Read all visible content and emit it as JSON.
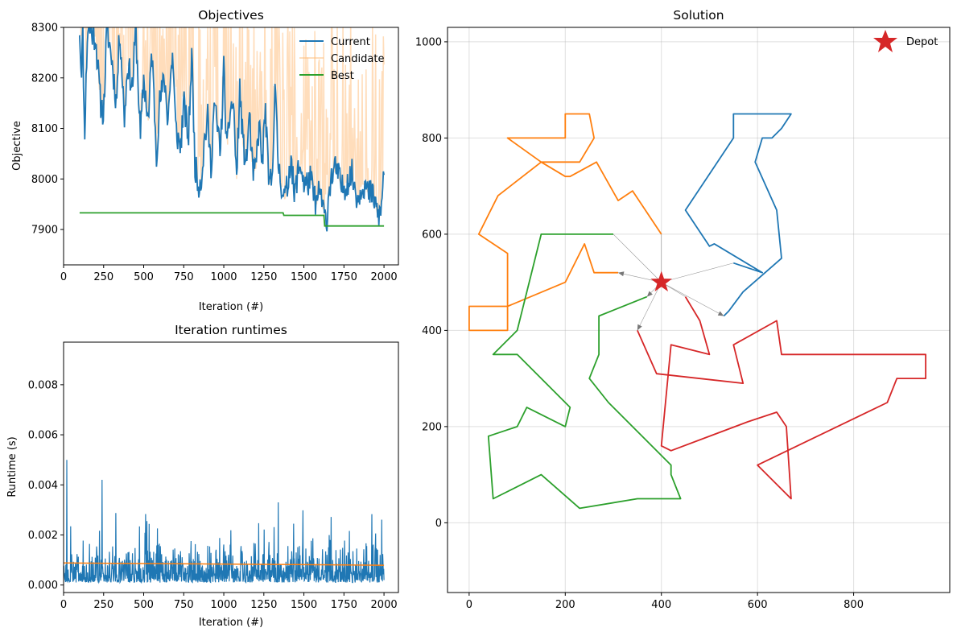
{
  "chart_data": [
    {
      "type": "line",
      "title": "Objectives",
      "xlabel": "Iteration (#)",
      "ylabel": "Objective",
      "xlim": [
        0,
        2090
      ],
      "ylim": [
        7830,
        8300
      ],
      "xticks": [
        0,
        250,
        500,
        750,
        1000,
        1250,
        1500,
        1750,
        2000
      ],
      "yticks": [
        7900,
        8000,
        8100,
        8200,
        8300
      ],
      "grid": false,
      "legend_position": "top-right",
      "series": [
        {
          "name": "Current",
          "color": "#1f77b4",
          "points": [
            [
              100,
              8300
            ],
            [
              110,
              8210
            ],
            [
              120,
              8290
            ],
            [
              130,
              8080
            ],
            [
              150,
              8300
            ],
            [
              200,
              8280
            ],
            [
              230,
              8150
            ],
            [
              250,
              8130
            ],
            [
              270,
              8300
            ],
            [
              300,
              8240
            ],
            [
              330,
              8150
            ],
            [
              350,
              8300
            ],
            [
              380,
              8120
            ],
            [
              400,
              8230
            ],
            [
              430,
              8180
            ],
            [
              450,
              8300
            ],
            [
              480,
              8080
            ],
            [
              500,
              8200
            ],
            [
              530,
              8110
            ],
            [
              550,
              8260
            ],
            [
              580,
              8050
            ],
            [
              600,
              8150
            ],
            [
              630,
              8200
            ],
            [
              650,
              8120
            ],
            [
              680,
              8250
            ],
            [
              700,
              8100
            ],
            [
              730,
              8060
            ],
            [
              750,
              8150
            ],
            [
              780,
              8080
            ],
            [
              800,
              8250
            ],
            [
              820,
              8030
            ],
            [
              840,
              7990
            ],
            [
              860,
              8000
            ],
            [
              880,
              8080
            ],
            [
              900,
              8120
            ],
            [
              920,
              8020
            ],
            [
              940,
              8150
            ],
            [
              960,
              8100
            ],
            [
              980,
              8060
            ],
            [
              1000,
              8220
            ],
            [
              1020,
              8050
            ],
            [
              1040,
              8140
            ],
            [
              1060,
              8150
            ],
            [
              1080,
              8000
            ],
            [
              1100,
              8180
            ],
            [
              1120,
              8070
            ],
            [
              1140,
              8030
            ],
            [
              1160,
              8130
            ],
            [
              1180,
              8010
            ],
            [
              1200,
              8020
            ],
            [
              1220,
              8110
            ],
            [
              1240,
              8030
            ],
            [
              1260,
              8140
            ],
            [
              1280,
              7990
            ],
            [
              1300,
              8000
            ],
            [
              1320,
              8180
            ],
            [
              1340,
              8030
            ],
            [
              1360,
              7990
            ],
            [
              1380,
              7960
            ],
            [
              1400,
              7990
            ],
            [
              1420,
              8050
            ],
            [
              1440,
              7960
            ],
            [
              1460,
              8010
            ],
            [
              1480,
              8030
            ],
            [
              1500,
              7990
            ],
            [
              1520,
              7990
            ],
            [
              1540,
              8000
            ],
            [
              1560,
              7970
            ],
            [
              1580,
              7950
            ],
            [
              1600,
              7980
            ],
            [
              1620,
              7940
            ],
            [
              1640,
              7910
            ],
            [
              1660,
              7990
            ],
            [
              1680,
              8010
            ],
            [
              1700,
              8020
            ],
            [
              1720,
              8000
            ],
            [
              1740,
              7980
            ],
            [
              1760,
              7990
            ],
            [
              1780,
              8000
            ],
            [
              1800,
              8010
            ],
            [
              1820,
              7980
            ],
            [
              1840,
              7960
            ],
            [
              1860,
              7990
            ],
            [
              1880,
              7990
            ],
            [
              1900,
              7970
            ],
            [
              1920,
              7970
            ],
            [
              1940,
              7960
            ],
            [
              1960,
              7930
            ],
            [
              1980,
              7930
            ],
            [
              2000,
              8020
            ]
          ]
        },
        {
          "name": "Candidate",
          "color": "#ffbb78"
        },
        {
          "name": "Best",
          "color": "#2ca02c",
          "points": [
            [
              100,
              7933
            ],
            [
              1370,
              7933
            ],
            [
              1375,
              7928
            ],
            [
              1625,
              7928
            ],
            [
              1630,
              7907
            ],
            [
              2000,
              7907
            ]
          ]
        }
      ]
    },
    {
      "type": "line",
      "title": "Iteration runtimes",
      "xlabel": "Iteration (#)",
      "ylabel": "Runtime (s)",
      "xlim": [
        0,
        2090
      ],
      "ylim": [
        -0.0003,
        0.0097
      ],
      "xticks": [
        0,
        250,
        500,
        750,
        1000,
        1250,
        1500,
        1750,
        2000
      ],
      "yticks": [
        "0.000",
        "0.002",
        "0.004",
        "0.006",
        "0.008"
      ],
      "grid": false,
      "series": [
        {
          "color": "#1f77b4",
          "note_pattern": "dense noisy runtimes, mostly 0.0001–0.0020 s, spikes to 0.0050 s"
        },
        {
          "color": "#ff7f0e",
          "trend": [
            [
              0,
              0.00088
            ],
            [
              2000,
              0.00079
            ]
          ]
        }
      ]
    },
    {
      "type": "line",
      "title": "Solution",
      "xlim": [
        -45,
        1000
      ],
      "ylim": [
        -145,
        1030
      ],
      "xticks": [
        0,
        200,
        400,
        600,
        800
      ],
      "yticks": [
        0,
        200,
        400,
        600,
        800,
        1000
      ],
      "grid": true,
      "legend_position": "top-right",
      "depot": {
        "name": "Depot",
        "x": 400,
        "y": 500,
        "color": "#d62728"
      },
      "routes": [
        {
          "color": "#1f77b4",
          "points": [
            [
              550,
              540
            ],
            [
              610,
              520
            ],
            [
              510,
              580
            ],
            [
              500,
              575
            ],
            [
              450,
              650
            ],
            [
              550,
              800
            ],
            [
              550,
              850
            ],
            [
              670,
              850
            ],
            [
              650,
              820
            ],
            [
              630,
              800
            ],
            [
              610,
              800
            ],
            [
              595,
              750
            ],
            [
              640,
              650
            ],
            [
              650,
              550
            ],
            [
              570,
              480
            ],
            [
              540,
              440
            ],
            [
              530,
              430
            ]
          ]
        },
        {
          "color": "#ff7f0e",
          "points": [
            [
              400,
              600
            ],
            [
              340,
              690
            ],
            [
              310,
              670
            ],
            [
              265,
              750
            ],
            [
              210,
              720
            ],
            [
              200,
              720
            ],
            [
              150,
              750
            ],
            [
              150,
              750
            ],
            [
              80,
              800
            ],
            [
              140,
              800
            ],
            [
              160,
              800
            ],
            [
              200,
              800
            ],
            [
              200,
              850
            ],
            [
              250,
              850
            ],
            [
              260,
              800
            ],
            [
              230,
              750
            ],
            [
              155,
              750
            ],
            [
              150,
              750
            ],
            [
              60,
              680
            ],
            [
              20,
              600
            ],
            [
              80,
              560
            ],
            [
              80,
              450
            ],
            [
              80,
              400
            ],
            [
              0,
              400
            ],
            [
              0,
              450
            ],
            [
              50,
              450
            ],
            [
              80,
              450
            ],
            [
              200,
              500
            ],
            [
              240,
              580
            ],
            [
              260,
              520
            ],
            [
              310,
              520
            ]
          ]
        },
        {
          "color": "#2ca02c",
          "points": [
            [
              300,
              600
            ],
            [
              150,
              600
            ],
            [
              150,
              600
            ],
            [
              100,
              400
            ],
            [
              50,
              350
            ],
            [
              100,
              350
            ],
            [
              210,
              240
            ],
            [
              200,
              200
            ],
            [
              120,
              240
            ],
            [
              100,
              200
            ],
            [
              40,
              180
            ],
            [
              50,
              50
            ],
            [
              150,
              100
            ],
            [
              230,
              30
            ],
            [
              350,
              50
            ],
            [
              440,
              50
            ],
            [
              420,
              100
            ],
            [
              420,
              120
            ],
            [
              290,
              250
            ],
            [
              250,
              300
            ],
            [
              270,
              350
            ],
            [
              270,
              430
            ],
            [
              370,
              470
            ]
          ]
        },
        {
          "color": "#d62728",
          "points": [
            [
              450,
              470
            ],
            [
              480,
              420
            ],
            [
              500,
              350
            ],
            [
              420,
              370
            ],
            [
              400,
              160
            ],
            [
              420,
              150
            ],
            [
              580,
              210
            ],
            [
              640,
              230
            ],
            [
              660,
              200
            ],
            [
              670,
              50
            ],
            [
              600,
              120
            ],
            [
              870,
              250
            ],
            [
              890,
              300
            ],
            [
              950,
              300
            ],
            [
              950,
              350
            ],
            [
              650,
              350
            ],
            [
              640,
              420
            ],
            [
              550,
              370
            ],
            [
              570,
              290
            ],
            [
              390,
              310
            ],
            [
              350,
              400
            ]
          ]
        }
      ],
      "depot_edges": [
        {
          "to": [
            550,
            540
          ],
          "arrow": false
        },
        {
          "to": [
            530,
            430
          ],
          "arrow": true
        },
        {
          "to": [
            400,
            600
          ],
          "arrow": false
        },
        {
          "to": [
            310,
            520
          ],
          "arrow": true
        },
        {
          "to": [
            300,
            600
          ],
          "arrow": false
        },
        {
          "to": [
            370,
            470
          ],
          "arrow": true
        },
        {
          "to": [
            450,
            470
          ],
          "arrow": false
        },
        {
          "to": [
            350,
            400
          ],
          "arrow": true
        }
      ]
    }
  ]
}
